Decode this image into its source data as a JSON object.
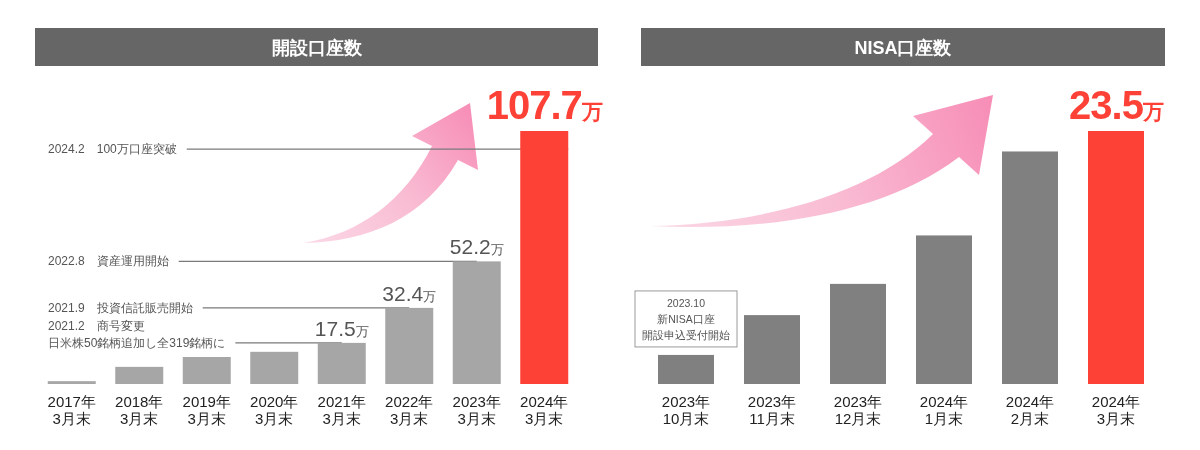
{
  "chart_data": [
    {
      "type": "bar",
      "title": "開設口座数",
      "categories": [
        "2017年\n3月末",
        "2018年\n3月末",
        "2019年\n3月末",
        "2020年\n3月末",
        "2021年\n3月末",
        "2022年\n3月末",
        "2023年\n3月末",
        "2024年\n3月末"
      ],
      "values": [
        1.2,
        7.3,
        11.5,
        13.7,
        17.5,
        32.4,
        52.2,
        107.7
      ],
      "colors": [
        "#a6a6a6",
        "#a6a6a6",
        "#a6a6a6",
        "#a6a6a6",
        "#a6a6a6",
        "#a6a6a6",
        "#a6a6a6",
        "#fd4136"
      ],
      "value_labels": [
        null,
        null,
        null,
        null,
        "17.5万",
        "32.4万",
        "52.2万",
        "107.7万"
      ],
      "ref_lines": [
        {
          "axis": "y",
          "value": 100,
          "label": "2024.2　100万口座突破"
        }
      ],
      "annotations": [
        {
          "text": "2022.8　資産運用開始",
          "x": "2023年\n3月末",
          "y": 52.2
        },
        {
          "text": "2021.9　投資信託販売開始",
          "x": "2022年\n3月末",
          "y": 32.4
        },
        {
          "text": "2021.2　商号変更日米株50銘柄追加し全319銘柄に",
          "x": "2021年\n3月末",
          "y": 17.5
        }
      ]
    },
    {
      "type": "bar",
      "title": "NISA口座数",
      "categories": [
        "2023年\n10月末",
        "2023年\n11月末",
        "2023年\n12月末",
        "2024年\n1月末",
        "2024年\n2月末",
        "2024年\n3月末"
      ],
      "values": [
        2.7,
        6.4,
        9.3,
        13.8,
        21.6,
        23.5
      ],
      "colors": [
        "#808080",
        "#808080",
        "#808080",
        "#808080",
        "#808080",
        "#fd4136"
      ],
      "value_labels": [
        null,
        null,
        null,
        null,
        null,
        "23.5万"
      ],
      "annotations": [
        {
          "text": "2023.10 新NISA口座開設申込受付開始",
          "x": "2023年\n10月末",
          "y": 2.7
        }
      ]
    }
  ]
}
